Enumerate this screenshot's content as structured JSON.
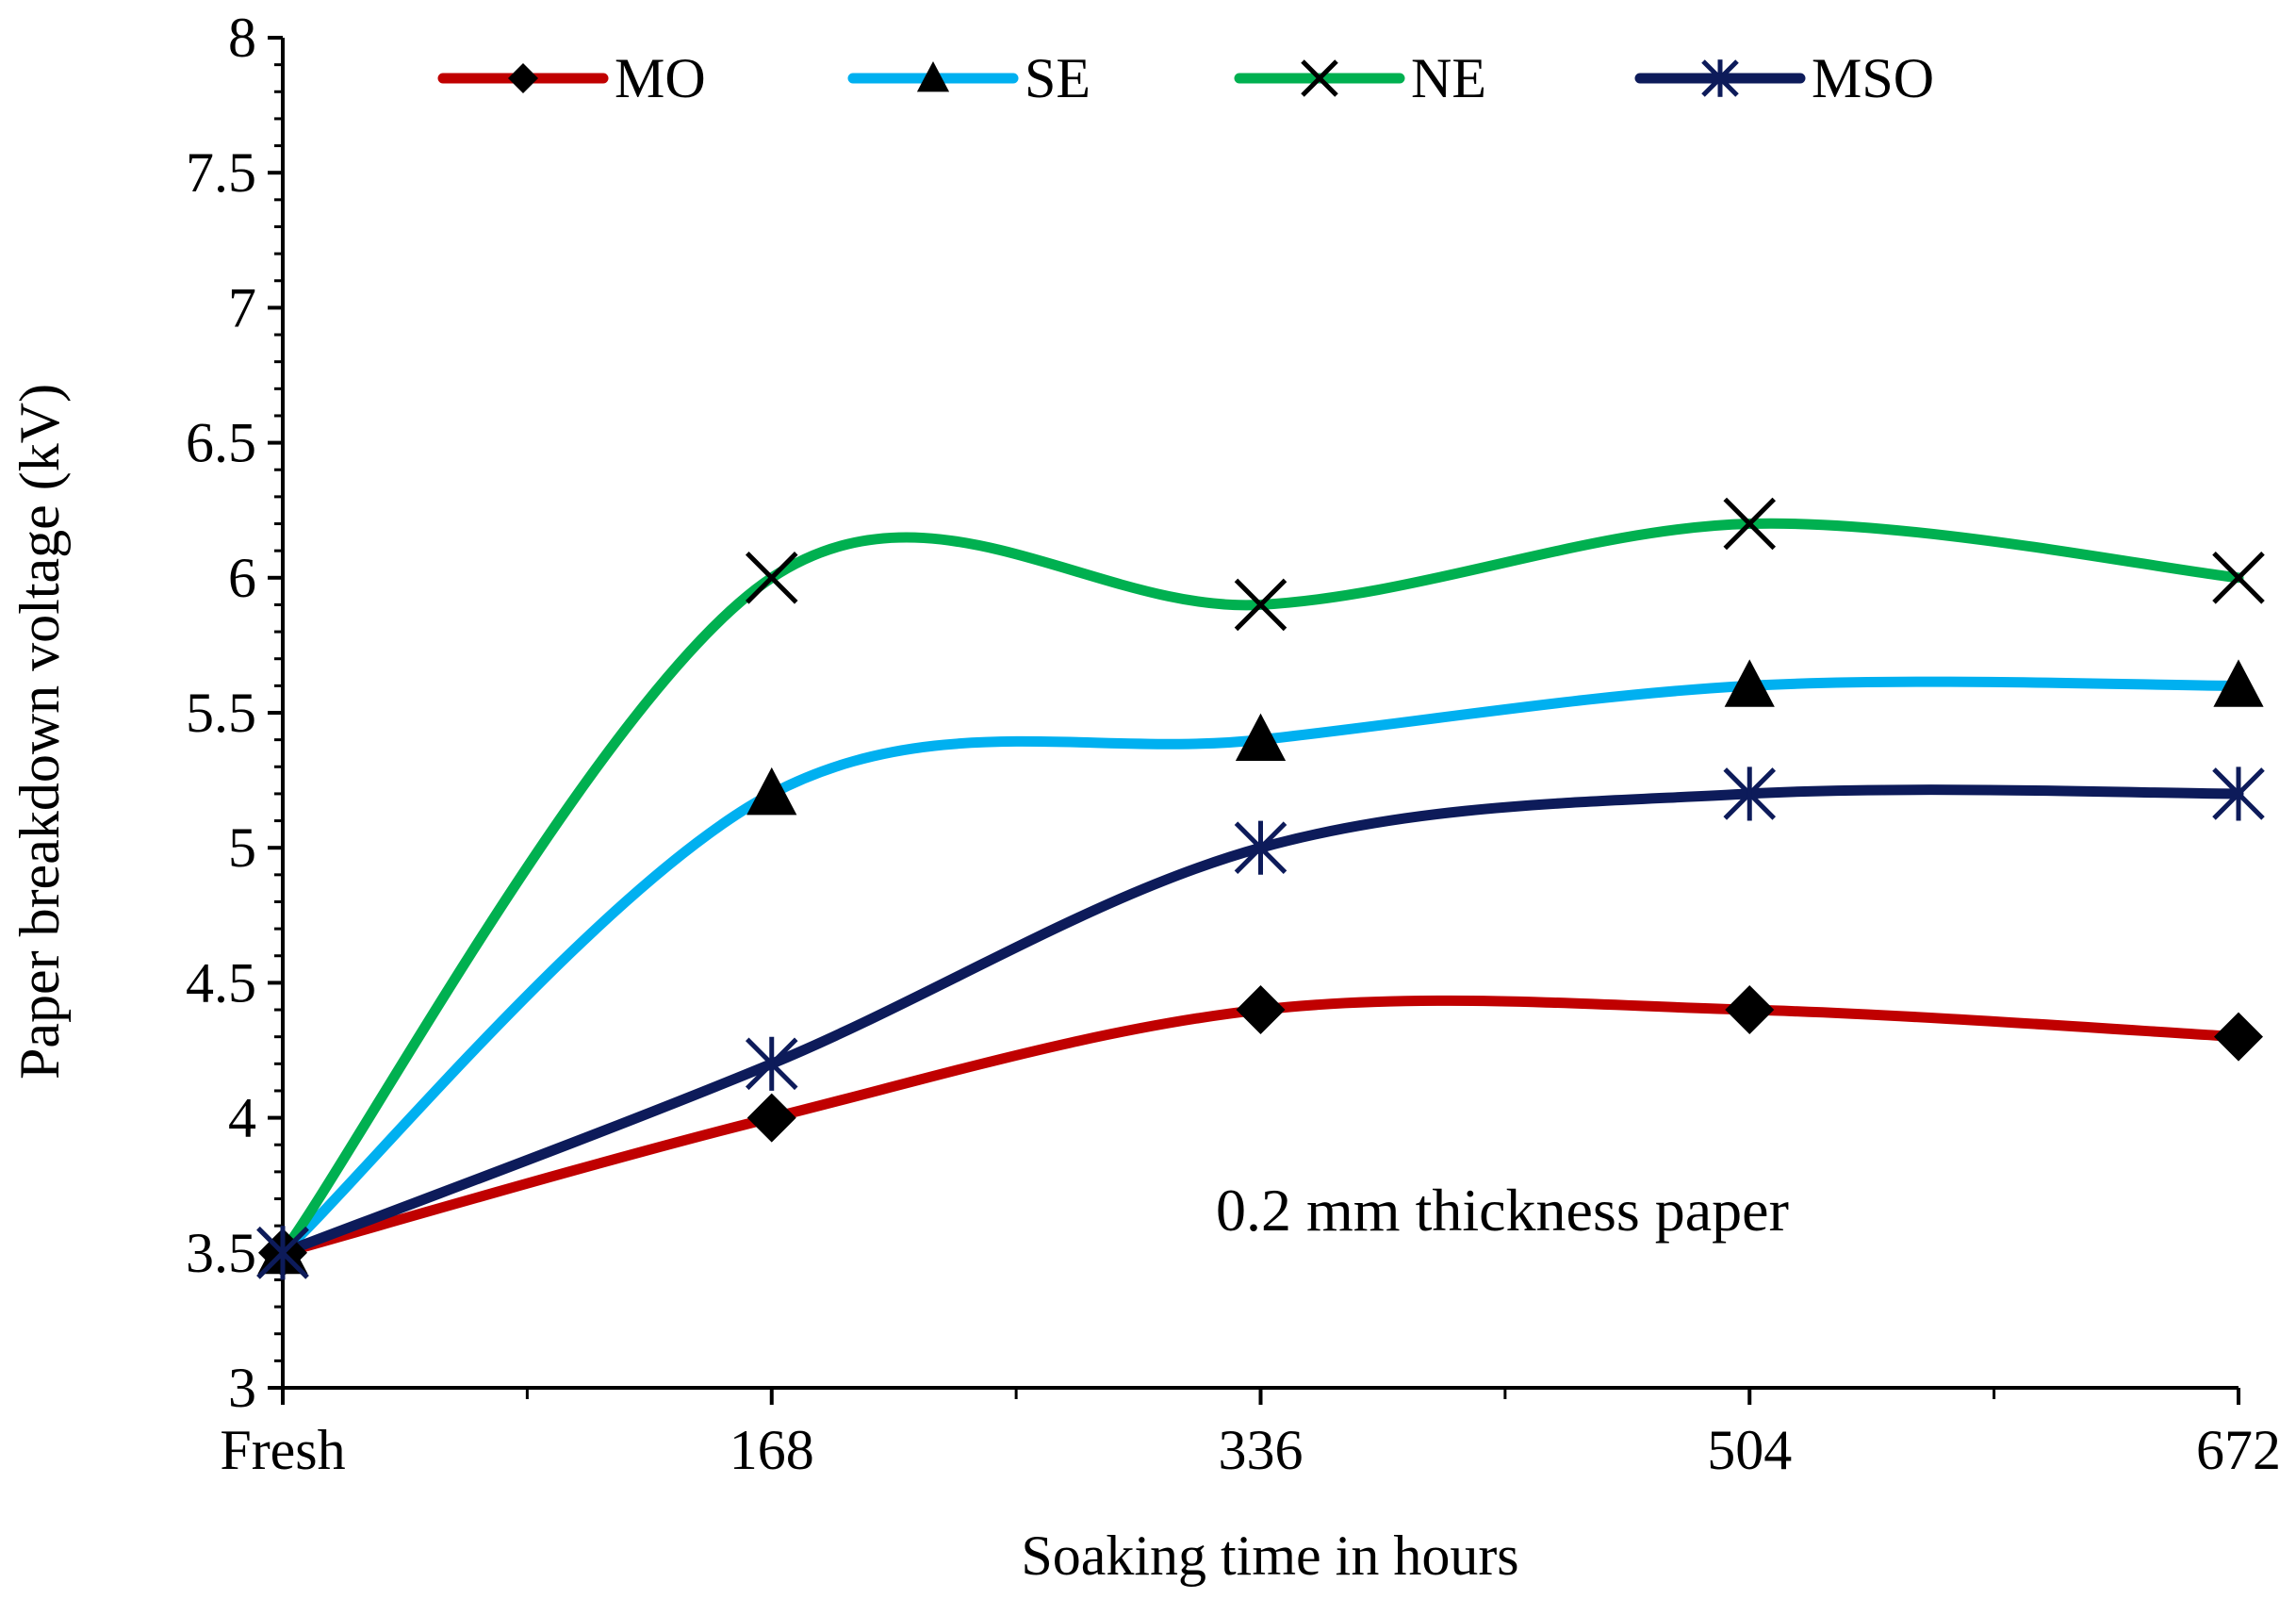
{
  "chart_data": {
    "type": "line",
    "title": "",
    "xlabel": "Soaking time in hours",
    "ylabel": "Paper breakdown voltage (kV)",
    "categories": [
      "Fresh",
      "168",
      "336",
      "504",
      "672"
    ],
    "ylim": [
      3,
      8
    ],
    "yticks": [
      "3",
      "3.5",
      "4",
      "4.5",
      "5",
      "5.5",
      "6",
      "6.5",
      "7",
      "7.5",
      "8"
    ],
    "annotation": "0.2 mm thickness paper",
    "legend_position": "top",
    "series": [
      {
        "name": "MO",
        "color": "#C00000",
        "marker": "diamond",
        "values": [
          3.5,
          4.0,
          4.4,
          4.4,
          4.3
        ]
      },
      {
        "name": "SE",
        "color": "#00B0F0",
        "marker": "triangle",
        "values": [
          3.5,
          5.2,
          5.4,
          5.6,
          5.6
        ]
      },
      {
        "name": "NE",
        "color": "#00B050",
        "marker": "x",
        "values": [
          3.5,
          6.0,
          5.9,
          6.2,
          6.0
        ]
      },
      {
        "name": "MSO",
        "color": "#0D1B5A",
        "marker": "asterisk",
        "values": [
          3.5,
          4.2,
          5.0,
          5.2,
          5.2
        ]
      }
    ]
  }
}
